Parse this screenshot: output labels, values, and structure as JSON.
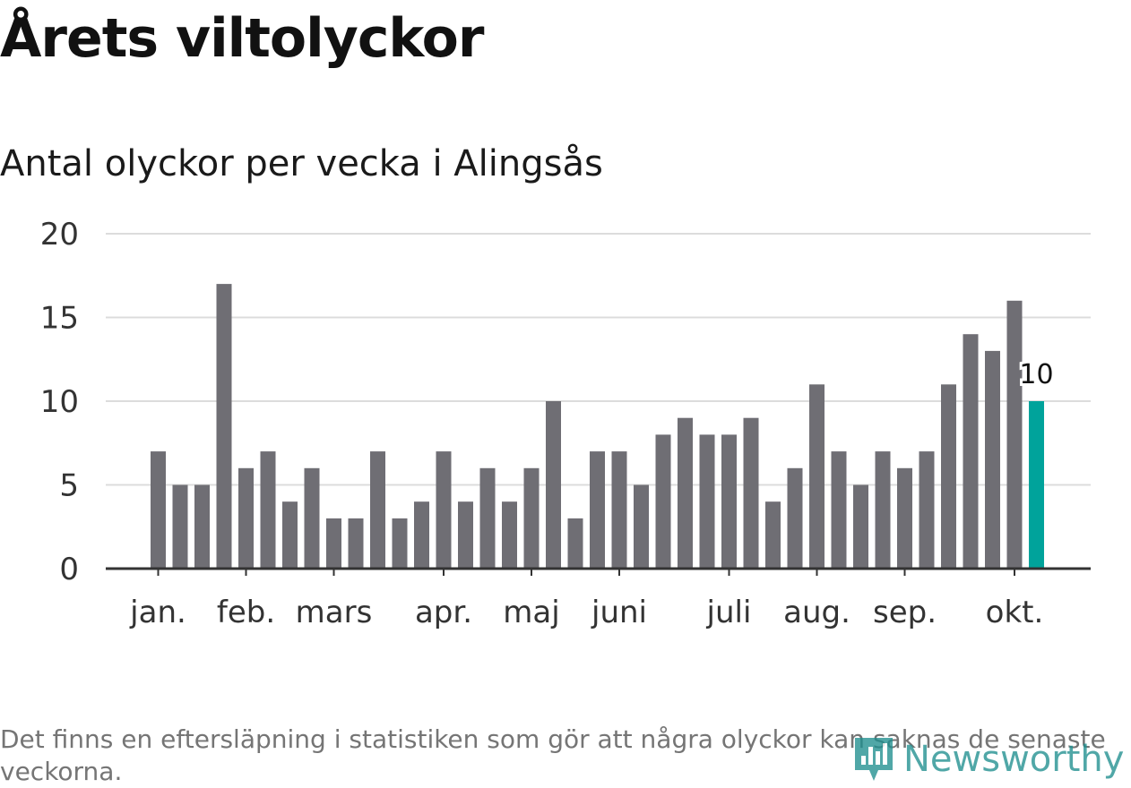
{
  "header": {
    "title": "Årets viltolyckor",
    "subtitle": "Antal olyckor per vecka i Alingsås"
  },
  "footnote": "Det finns en eftersläpning i statistiken som gör att några olyckor kan saknas de senaste veckorna.",
  "brand": {
    "name": "Newsworthy",
    "icon": "newsworthy-logo-icon",
    "color": "#1f8f8f"
  },
  "chart_data": {
    "type": "bar",
    "categories": [
      "1",
      "2",
      "3",
      "4",
      "5",
      "6",
      "7",
      "8",
      "9",
      "10",
      "11",
      "12",
      "13",
      "14",
      "15",
      "16",
      "17",
      "18",
      "19",
      "20",
      "21",
      "22",
      "23",
      "24",
      "25",
      "26",
      "27",
      "28",
      "29",
      "30",
      "31",
      "32",
      "33",
      "34",
      "35",
      "36",
      "37",
      "38",
      "39",
      "40",
      "41"
    ],
    "values": [
      7,
      5,
      5,
      17,
      6,
      7,
      4,
      6,
      3,
      3,
      7,
      3,
      4,
      7,
      4,
      6,
      4,
      6,
      10,
      3,
      7,
      7,
      5,
      8,
      9,
      8,
      8,
      9,
      4,
      6,
      11,
      7,
      5,
      7,
      6,
      7,
      11,
      14,
      13,
      16,
      10
    ],
    "month_labels": [
      {
        "label": "jan.",
        "week": 1
      },
      {
        "label": "feb.",
        "week": 5
      },
      {
        "label": "mars",
        "week": 9
      },
      {
        "label": "apr.",
        "week": 14
      },
      {
        "label": "maj",
        "week": 18
      },
      {
        "label": "juni",
        "week": 22
      },
      {
        "label": "juli",
        "week": 27
      },
      {
        "label": "aug.",
        "week": 31
      },
      {
        "label": "sep.",
        "week": 35
      },
      {
        "label": "okt.",
        "week": 40
      }
    ],
    "y_ticks": [
      0,
      5,
      10,
      15,
      20
    ],
    "ylim": [
      0,
      20
    ],
    "highlight_last": true,
    "last_label": "10",
    "colors": {
      "bar": "#6f6e74",
      "highlight": "#00a39b",
      "grid": "#dcdcdc",
      "axis": "#333333"
    },
    "grid": true
  }
}
